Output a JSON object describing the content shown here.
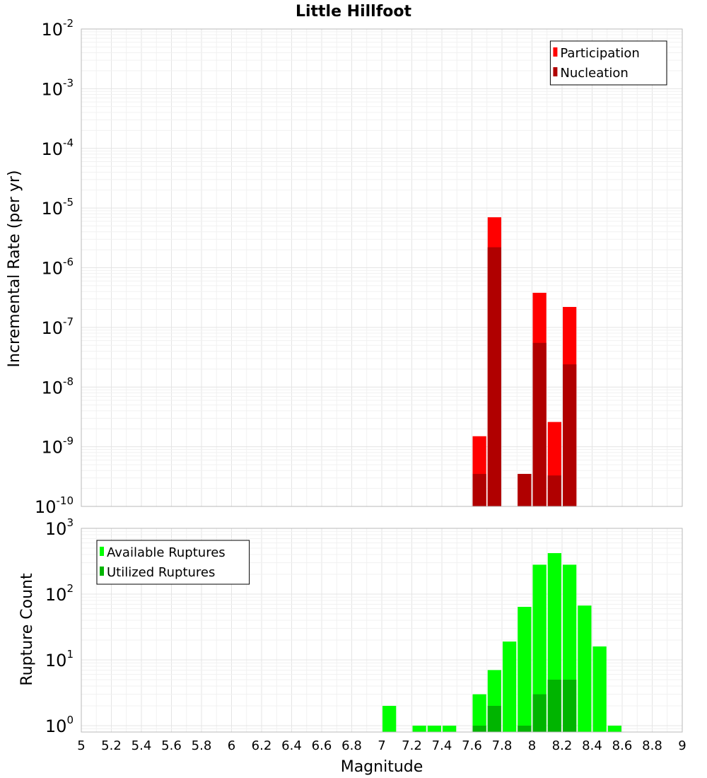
{
  "chart_data": [
    {
      "type": "bar",
      "title": "Little Hillfoot",
      "ylabel": "Incremental Rate (per yr)",
      "xlabel": "",
      "xlim": [
        5,
        9
      ],
      "ylim": [
        1e-10,
        0.01
      ],
      "yscale": "log",
      "bin_width": 0.1,
      "y_ticks": [
        {
          "base": "10",
          "exp": "-10"
        },
        {
          "base": "10",
          "exp": "-9"
        },
        {
          "base": "10",
          "exp": "-8"
        },
        {
          "base": "10",
          "exp": "-7"
        },
        {
          "base": "10",
          "exp": "-6"
        },
        {
          "base": "10",
          "exp": "-5"
        },
        {
          "base": "10",
          "exp": "-4"
        },
        {
          "base": "10",
          "exp": "-3"
        },
        {
          "base": "10",
          "exp": "-2"
        }
      ],
      "legend_position": "top-right",
      "grid": true,
      "series": [
        {
          "name": "Participation",
          "color": "#ff0000",
          "x": [
            7.65,
            7.75,
            7.95,
            8.05,
            8.15,
            8.25
          ],
          "values": [
            1.5e-09,
            7e-06,
            3.5e-10,
            3.8e-07,
            2.6e-09,
            2.2e-07
          ]
        },
        {
          "name": "Nucleation",
          "color": "#b00000",
          "x": [
            7.65,
            7.75,
            7.95,
            8.05,
            8.15,
            8.25
          ],
          "values": [
            3.5e-10,
            2.2e-06,
            3.5e-10,
            5.5e-08,
            3.3e-10,
            2.4e-08
          ]
        }
      ]
    },
    {
      "type": "bar",
      "title": "",
      "ylabel": "Rupture Count",
      "xlabel": "Magnitude",
      "xlim": [
        5,
        9
      ],
      "ylim": [
        0.8,
        1000
      ],
      "yscale": "log",
      "bin_width": 0.1,
      "y_ticks": [
        {
          "base": "10",
          "exp": "0"
        },
        {
          "base": "10",
          "exp": "1"
        },
        {
          "base": "10",
          "exp": "2"
        },
        {
          "base": "10",
          "exp": "3"
        }
      ],
      "x_tick_labels": [
        "5",
        "5.2",
        "5.4",
        "5.6",
        "5.8",
        "6",
        "6.2",
        "6.4",
        "6.6",
        "6.8",
        "7",
        "7.2",
        "7.4",
        "7.6",
        "7.8",
        "8",
        "8.2",
        "8.4",
        "8.6",
        "8.8",
        "9"
      ],
      "legend_position": "top-left",
      "grid": true,
      "series": [
        {
          "name": "Available Ruptures",
          "color": "#00ff00",
          "x": [
            7.05,
            7.25,
            7.35,
            7.45,
            7.65,
            7.75,
            7.85,
            7.95,
            8.05,
            8.15,
            8.25,
            8.35,
            8.45,
            8.55
          ],
          "values": [
            2,
            1,
            1,
            1,
            3,
            7,
            19,
            64,
            280,
            420,
            280,
            67,
            16,
            1
          ]
        },
        {
          "name": "Utilized Ruptures",
          "color": "#00b400",
          "x": [
            7.65,
            7.75,
            7.95,
            8.05,
            8.15,
            8.25
          ],
          "values": [
            1,
            2,
            1,
            3,
            5,
            5
          ]
        }
      ]
    }
  ]
}
